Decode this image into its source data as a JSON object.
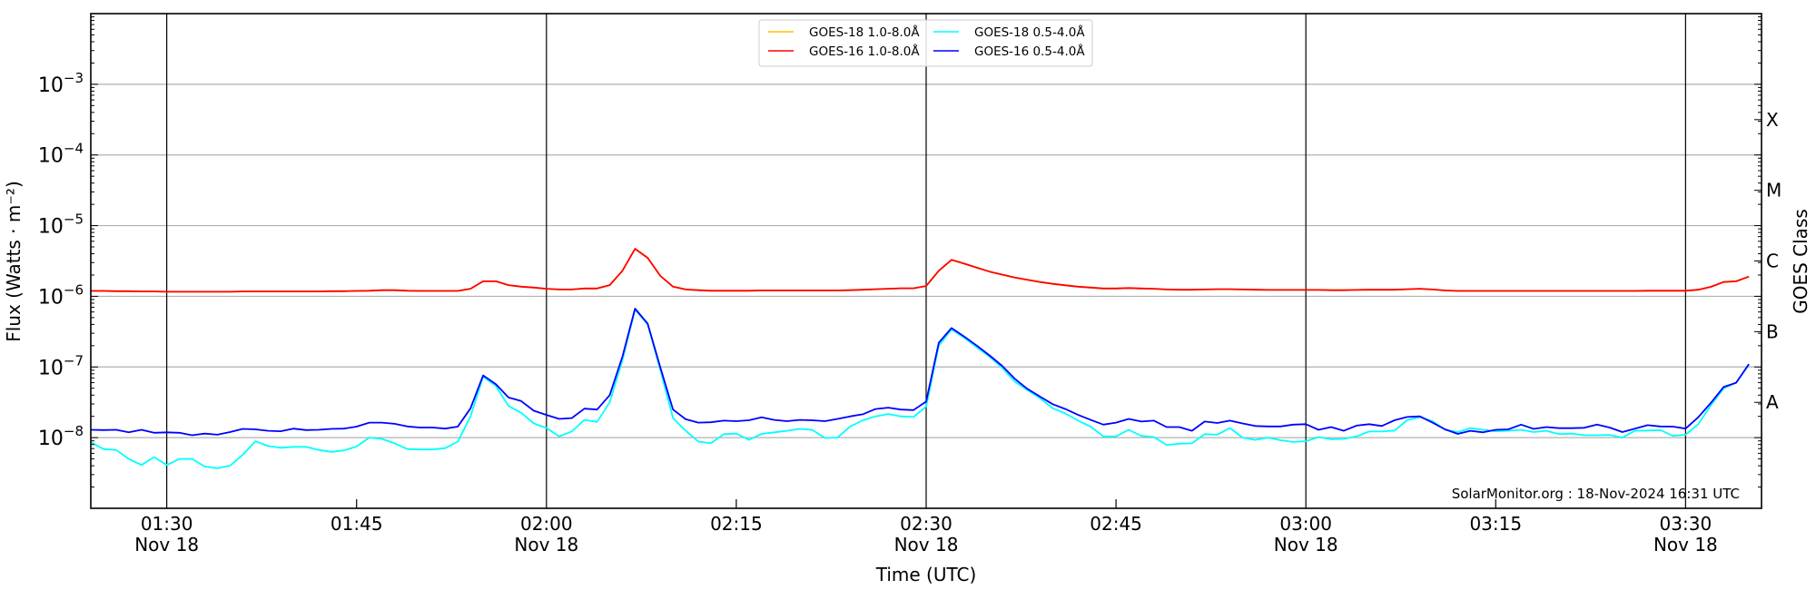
{
  "chart_data": {
    "type": "line",
    "title": "",
    "xlabel": "Time (UTC)",
    "ylabel": "Flux (Watts · m⁻²)",
    "ylabel_right": "GOES Class",
    "x_start": "01:24",
    "x_interval_minutes": 1,
    "xlim_minutes_from_start": [
      0,
      132
    ],
    "ylim": [
      1e-09,
      0.01
    ],
    "yscale": "log",
    "y_ticks": [
      {
        "value": 0.001,
        "label_base": "10",
        "label_exp": "−3"
      },
      {
        "value": 0.0001,
        "label_base": "10",
        "label_exp": "−4"
      },
      {
        "value": 1e-05,
        "label_base": "10",
        "label_exp": "−5"
      },
      {
        "value": 1e-06,
        "label_base": "10",
        "label_exp": "−6"
      },
      {
        "value": 1e-07,
        "label_base": "10",
        "label_exp": "−7"
      },
      {
        "value": 1e-08,
        "label_base": "10",
        "label_exp": "−8"
      }
    ],
    "x_ticks": [
      {
        "minute": 6,
        "time": "01:30",
        "date": "Nov 18",
        "major": true
      },
      {
        "minute": 21,
        "time": "01:45",
        "date": "",
        "major": false
      },
      {
        "minute": 36,
        "time": "02:00",
        "date": "Nov 18",
        "major": true
      },
      {
        "minute": 51,
        "time": "02:15",
        "date": "",
        "major": false
      },
      {
        "minute": 66,
        "time": "02:30",
        "date": "Nov 18",
        "major": true
      },
      {
        "minute": 81,
        "time": "02:45",
        "date": "",
        "major": false
      },
      {
        "minute": 96,
        "time": "03:00",
        "date": "Nov 18",
        "major": true
      },
      {
        "minute": 111,
        "time": "03:15",
        "date": "",
        "major": false
      },
      {
        "minute": 126,
        "time": "03:30",
        "date": "Nov 18",
        "major": true
      }
    ],
    "goes_classes": [
      {
        "label": "X",
        "value": 0.000316
      },
      {
        "label": "M",
        "value": 3.16e-05
      },
      {
        "label": "C",
        "value": 3.16e-06
      },
      {
        "label": "B",
        "value": 3.16e-07
      },
      {
        "label": "A",
        "value": 3.16e-08
      }
    ],
    "grid": "horizontal at decades",
    "legend_position": "top-center",
    "annotation": "SolarMonitor.org : 18-Nov-2024 16:31 UTC",
    "series": [
      {
        "name": "GOES-18 1.0-8.0Å",
        "color": "#ffc000",
        "values": [
          1.19e-06,
          1.19e-06,
          1.18e-06,
          1.18e-06,
          1.17e-06,
          1.17e-06,
          1.16e-06,
          1.16e-06,
          1.16e-06,
          1.16e-06,
          1.16e-06,
          1.16e-06,
          1.17e-06,
          1.17e-06,
          1.17e-06,
          1.17e-06,
          1.17e-06,
          1.17e-06,
          1.17e-06,
          1.18e-06,
          1.18e-06,
          1.19e-06,
          1.2e-06,
          1.22e-06,
          1.22e-06,
          1.2e-06,
          1.19e-06,
          1.19e-06,
          1.19e-06,
          1.19e-06,
          1.28e-06,
          1.63e-06,
          1.63e-06,
          1.44e-06,
          1.37e-06,
          1.33e-06,
          1.28e-06,
          1.25e-06,
          1.25e-06,
          1.29e-06,
          1.29e-06,
          1.44e-06,
          2.3e-06,
          4.7e-06,
          3.5e-06,
          1.94e-06,
          1.37e-06,
          1.25e-06,
          1.22e-06,
          1.2e-06,
          1.2e-06,
          1.2e-06,
          1.2e-06,
          1.21e-06,
          1.21e-06,
          1.21e-06,
          1.21e-06,
          1.21e-06,
          1.21e-06,
          1.21e-06,
          1.22e-06,
          1.24e-06,
          1.26e-06,
          1.28e-06,
          1.3e-06,
          1.3e-06,
          1.4e-06,
          2.3e-06,
          3.28e-06,
          2.9e-06,
          2.54e-06,
          2.24e-06,
          2.03e-06,
          1.84e-06,
          1.71e-06,
          1.59e-06,
          1.5e-06,
          1.43e-06,
          1.37e-06,
          1.33e-06,
          1.29e-06,
          1.29e-06,
          1.31e-06,
          1.29e-06,
          1.28e-06,
          1.25e-06,
          1.24e-06,
          1.24e-06,
          1.25e-06,
          1.26e-06,
          1.26e-06,
          1.25e-06,
          1.24e-06,
          1.23e-06,
          1.23e-06,
          1.23e-06,
          1.23e-06,
          1.23e-06,
          1.22e-06,
          1.22e-06,
          1.23e-06,
          1.24e-06,
          1.24e-06,
          1.24e-06,
          1.26e-06,
          1.28e-06,
          1.25e-06,
          1.21e-06,
          1.19e-06,
          1.19e-06,
          1.19e-06,
          1.19e-06,
          1.19e-06,
          1.19e-06,
          1.19e-06,
          1.19e-06,
          1.19e-06,
          1.19e-06,
          1.19e-06,
          1.19e-06,
          1.19e-06,
          1.19e-06,
          1.19e-06,
          1.2e-06,
          1.2e-06,
          1.2e-06,
          1.2e-06,
          1.24e-06,
          1.36e-06,
          1.59e-06,
          1.63e-06,
          1.9e-06
        ]
      },
      {
        "name": "GOES-16 1.0-8.0Å",
        "color": "#ff0000",
        "values": [
          1.19e-06,
          1.19e-06,
          1.18e-06,
          1.18e-06,
          1.17e-06,
          1.17e-06,
          1.16e-06,
          1.16e-06,
          1.16e-06,
          1.16e-06,
          1.16e-06,
          1.16e-06,
          1.17e-06,
          1.17e-06,
          1.17e-06,
          1.17e-06,
          1.17e-06,
          1.17e-06,
          1.17e-06,
          1.18e-06,
          1.18e-06,
          1.19e-06,
          1.2e-06,
          1.22e-06,
          1.22e-06,
          1.2e-06,
          1.19e-06,
          1.19e-06,
          1.19e-06,
          1.19e-06,
          1.28e-06,
          1.63e-06,
          1.63e-06,
          1.44e-06,
          1.37e-06,
          1.33e-06,
          1.28e-06,
          1.25e-06,
          1.25e-06,
          1.29e-06,
          1.29e-06,
          1.44e-06,
          2.3e-06,
          4.7e-06,
          3.5e-06,
          1.94e-06,
          1.37e-06,
          1.25e-06,
          1.22e-06,
          1.2e-06,
          1.2e-06,
          1.2e-06,
          1.2e-06,
          1.21e-06,
          1.21e-06,
          1.21e-06,
          1.21e-06,
          1.21e-06,
          1.21e-06,
          1.21e-06,
          1.22e-06,
          1.24e-06,
          1.26e-06,
          1.28e-06,
          1.3e-06,
          1.3e-06,
          1.4e-06,
          2.3e-06,
          3.28e-06,
          2.9e-06,
          2.54e-06,
          2.24e-06,
          2.03e-06,
          1.84e-06,
          1.71e-06,
          1.59e-06,
          1.5e-06,
          1.43e-06,
          1.37e-06,
          1.33e-06,
          1.29e-06,
          1.29e-06,
          1.31e-06,
          1.29e-06,
          1.28e-06,
          1.25e-06,
          1.24e-06,
          1.24e-06,
          1.25e-06,
          1.26e-06,
          1.26e-06,
          1.25e-06,
          1.24e-06,
          1.23e-06,
          1.23e-06,
          1.23e-06,
          1.23e-06,
          1.23e-06,
          1.22e-06,
          1.22e-06,
          1.23e-06,
          1.24e-06,
          1.24e-06,
          1.24e-06,
          1.26e-06,
          1.28e-06,
          1.25e-06,
          1.21e-06,
          1.19e-06,
          1.19e-06,
          1.19e-06,
          1.19e-06,
          1.19e-06,
          1.19e-06,
          1.19e-06,
          1.19e-06,
          1.19e-06,
          1.19e-06,
          1.19e-06,
          1.19e-06,
          1.19e-06,
          1.19e-06,
          1.19e-06,
          1.2e-06,
          1.2e-06,
          1.2e-06,
          1.2e-06,
          1.24e-06,
          1.36e-06,
          1.59e-06,
          1.63e-06,
          1.9e-06
        ]
      },
      {
        "name": "GOES-18 0.5-4.0Å",
        "color": "#00ffff",
        "values": [
          8.6e-09,
          6.9e-09,
          6.7e-09,
          5e-09,
          4.1e-09,
          5.3e-09,
          4.1e-09,
          5e-09,
          5e-09,
          3.9e-09,
          3.7e-09,
          4e-09,
          5.7e-09,
          8.9e-09,
          7.6e-09,
          7.2e-09,
          7.4e-09,
          7.4e-09,
          6.7e-09,
          6.3e-09,
          6.6e-09,
          7.5e-09,
          1e-08,
          9.6e-09,
          8.3e-09,
          6.9e-09,
          6.8e-09,
          6.8e-09,
          7.1e-09,
          8.8e-09,
          2e-08,
          7.3e-08,
          5.4e-08,
          2.8e-08,
          2.25e-08,
          1.59e-08,
          1.37e-08,
          1.04e-08,
          1.22e-08,
          1.78e-08,
          1.67e-08,
          3.16e-08,
          1.25e-07,
          6.5e-07,
          4e-07,
          9e-08,
          1.89e-08,
          1.25e-08,
          8.8e-09,
          8.3e-09,
          1.12e-08,
          1.14e-08,
          9.3e-09,
          1.13e-08,
          1.19e-08,
          1.25e-08,
          1.33e-08,
          1.29e-08,
          9.9e-09,
          1e-08,
          1.44e-08,
          1.76e-08,
          2e-08,
          2.16e-08,
          2e-08,
          1.96e-08,
          2.76e-08,
          2e-07,
          3.4e-07,
          2.6e-07,
          1.9e-07,
          1.4e-07,
          9.8e-08,
          6.2e-08,
          4.7e-08,
          3.6e-08,
          2.6e-08,
          2.2e-08,
          1.74e-08,
          1.43e-08,
          1.04e-08,
          1.04e-08,
          1.29e-08,
          1.06e-08,
          1.02e-08,
          7.9e-09,
          8.2e-09,
          8.3e-09,
          1.12e-08,
          1.1e-08,
          1.37e-08,
          1e-08,
          9.3e-09,
          1e-08,
          9.2e-09,
          8.7e-09,
          8.9e-09,
          1.02e-08,
          9.5e-09,
          9.6e-09,
          1.04e-08,
          1.22e-08,
          1.22e-08,
          1.26e-08,
          1.76e-08,
          1.96e-08,
          1.71e-08,
          1.29e-08,
          1.2e-08,
          1.36e-08,
          1.29e-08,
          1.23e-08,
          1.25e-08,
          1.29e-08,
          1.2e-08,
          1.25e-08,
          1.12e-08,
          1.14e-08,
          1.08e-08,
          1.08e-08,
          1.09e-08,
          1e-08,
          1.25e-08,
          1.26e-08,
          1.28e-08,
          1.06e-08,
          1.1e-08,
          1.55e-08,
          2.87e-08,
          4.98e-08,
          6e-08,
          1.08e-07
        ]
      },
      {
        "name": "GOES-16 0.5-4.0Å",
        "color": "#0000ff",
        "values": [
          1.29e-08,
          1.28e-08,
          1.29e-08,
          1.19e-08,
          1.29e-08,
          1.17e-08,
          1.19e-08,
          1.17e-08,
          1.08e-08,
          1.14e-08,
          1.1e-08,
          1.2e-08,
          1.33e-08,
          1.31e-08,
          1.25e-08,
          1.23e-08,
          1.34e-08,
          1.28e-08,
          1.29e-08,
          1.33e-08,
          1.34e-08,
          1.43e-08,
          1.63e-08,
          1.63e-08,
          1.57e-08,
          1.44e-08,
          1.39e-08,
          1.39e-08,
          1.34e-08,
          1.43e-08,
          2.6e-08,
          7.6e-08,
          5.7e-08,
          3.7e-08,
          3.3e-08,
          2.4e-08,
          2.1e-08,
          1.84e-08,
          1.89e-08,
          2.57e-08,
          2.5e-08,
          4e-08,
          1.4e-07,
          6.7e-07,
          4.1e-07,
          9.8e-08,
          2.5e-08,
          1.82e-08,
          1.63e-08,
          1.65e-08,
          1.74e-08,
          1.71e-08,
          1.76e-08,
          1.94e-08,
          1.78e-08,
          1.71e-08,
          1.78e-08,
          1.76e-08,
          1.71e-08,
          1.84e-08,
          2e-08,
          2.14e-08,
          2.54e-08,
          2.66e-08,
          2.5e-08,
          2.45e-08,
          3.24e-08,
          2.2e-07,
          3.56e-07,
          2.7e-07,
          2e-07,
          1.46e-07,
          1.04e-07,
          6.8e-08,
          4.9e-08,
          3.8e-08,
          2.97e-08,
          2.54e-08,
          2.1e-08,
          1.78e-08,
          1.53e-08,
          1.63e-08,
          1.84e-08,
          1.69e-08,
          1.74e-08,
          1.41e-08,
          1.41e-08,
          1.25e-08,
          1.69e-08,
          1.61e-08,
          1.74e-08,
          1.59e-08,
          1.46e-08,
          1.44e-08,
          1.44e-08,
          1.53e-08,
          1.55e-08,
          1.29e-08,
          1.41e-08,
          1.25e-08,
          1.48e-08,
          1.55e-08,
          1.46e-08,
          1.76e-08,
          1.96e-08,
          2e-08,
          1.63e-08,
          1.31e-08,
          1.13e-08,
          1.25e-08,
          1.19e-08,
          1.29e-08,
          1.31e-08,
          1.53e-08,
          1.33e-08,
          1.41e-08,
          1.36e-08,
          1.36e-08,
          1.38e-08,
          1.53e-08,
          1.39e-08,
          1.2e-08,
          1.34e-08,
          1.5e-08,
          1.44e-08,
          1.43e-08,
          1.34e-08,
          1.94e-08,
          3.1e-08,
          5.2e-08,
          6e-08,
          1.1e-07
        ]
      }
    ]
  }
}
